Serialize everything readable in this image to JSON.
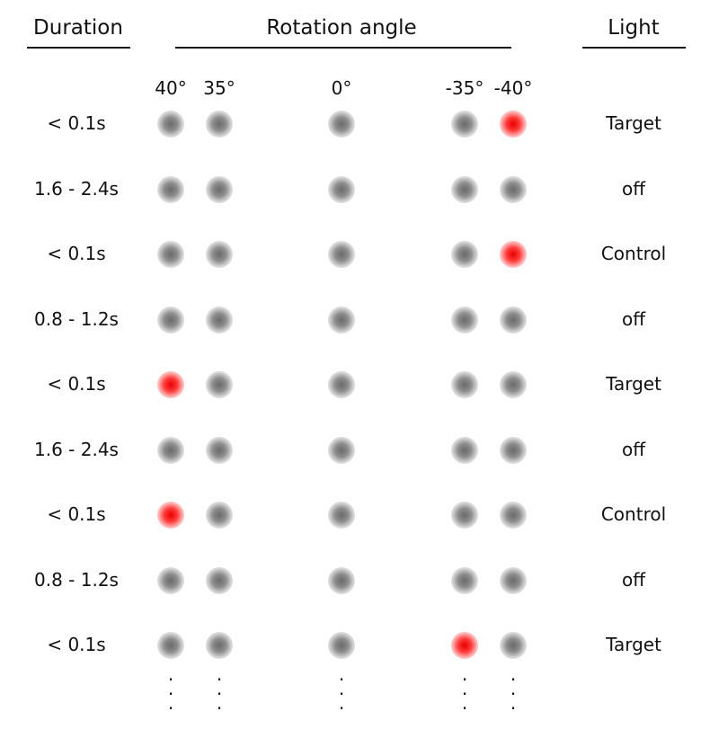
{
  "headers": {
    "duration": "Duration",
    "rotation": "Rotation angle",
    "light": "Light"
  },
  "angles": [
    "40°",
    "35°",
    "0°",
    "-35°",
    "-40°"
  ],
  "rows": [
    {
      "duration": "< 0.1s",
      "light": "Target",
      "lit_index": 4
    },
    {
      "duration": "1.6 - 2.4s",
      "light": "off",
      "lit_index": -1
    },
    {
      "duration": "< 0.1s",
      "light": "Control",
      "lit_index": 4
    },
    {
      "duration": "0.8 - 1.2s",
      "light": "off",
      "lit_index": -1
    },
    {
      "duration": "< 0.1s",
      "light": "Target",
      "lit_index": 0
    },
    {
      "duration": "1.6 - 2.4s",
      "light": "off",
      "lit_index": -1
    },
    {
      "duration": "< 0.1s",
      "light": "Control",
      "lit_index": 0
    },
    {
      "duration": "0.8 - 1.2s",
      "light": "off",
      "lit_index": -1
    },
    {
      "duration": "< 0.1s",
      "light": "Target",
      "lit_index": 3
    }
  ],
  "ellipsis": ".\n.\n.",
  "colors": {
    "off": "#888888",
    "on": "#ff2020"
  }
}
